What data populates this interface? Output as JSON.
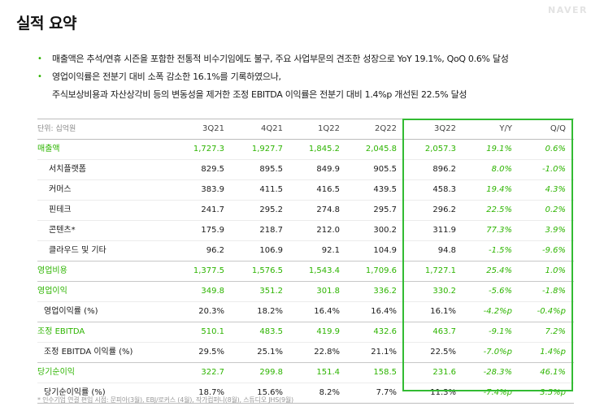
{
  "title": "실적 요약",
  "brand": "NAVER",
  "bullets": [
    "매출액은 추석/연휴 시즌을 포함한 전통적 비수기임에도 불구, 주요 사업부문의 견조한 성장으로 YoY 19.1%, QoQ 0.6% 달성",
    "영업이익률은 전분기 대비 소폭 감소한 16.1%를 기록하였으나,",
    "주식보상비용과 자산상각비 등의 변동성을 제거한 조정 EBITDA 이익률은 전분기 대비 1.4%p 개선된 22.5% 달성"
  ],
  "table": {
    "unit_label": "단위: 십억원",
    "columns": [
      "3Q21",
      "4Q21",
      "1Q22",
      "2Q22",
      "3Q22",
      "Y/Y",
      "Q/Q"
    ],
    "rows": [
      {
        "label": "매출액",
        "values": [
          "1,727.3",
          "1,927.7",
          "1,845.2",
          "2,045.8",
          "2,057.3",
          "19.1%",
          "0.6%"
        ]
      },
      {
        "label": "서치플랫폼",
        "values": [
          "829.5",
          "895.5",
          "849.9",
          "905.5",
          "896.2",
          "8.0%",
          "-1.0%"
        ]
      },
      {
        "label": "커머스",
        "values": [
          "383.9",
          "411.5",
          "416.5",
          "439.5",
          "458.3",
          "19.4%",
          "4.3%"
        ]
      },
      {
        "label": "핀테크",
        "values": [
          "241.7",
          "295.2",
          "274.8",
          "295.7",
          "296.2",
          "22.5%",
          "0.2%"
        ]
      },
      {
        "label": "콘텐츠*",
        "values": [
          "175.9",
          "218.7",
          "212.0",
          "300.2",
          "311.9",
          "77.3%",
          "3.9%"
        ]
      },
      {
        "label": "클라우드 및 기타",
        "values": [
          "96.2",
          "106.9",
          "92.1",
          "104.9",
          "94.8",
          "-1.5%",
          "-9.6%"
        ]
      },
      {
        "label": "영업비용",
        "values": [
          "1,377.5",
          "1,576.5",
          "1,543.4",
          "1,709.6",
          "1,727.1",
          "25.4%",
          "1.0%"
        ]
      },
      {
        "label": "영업이익",
        "values": [
          "349.8",
          "351.2",
          "301.8",
          "336.2",
          "330.2",
          "-5.6%",
          "-1.8%"
        ]
      },
      {
        "label": "영업이익률 (%)",
        "values": [
          "20.3%",
          "18.2%",
          "16.4%",
          "16.4%",
          "16.1%",
          "-4.2%p",
          "-0.4%p"
        ]
      },
      {
        "label": "조정 EBITDA",
        "values": [
          "510.1",
          "483.5",
          "419.9",
          "432.6",
          "463.7",
          "-9.1%",
          "7.2%"
        ]
      },
      {
        "label": "조정 EBITDA 이익률 (%)",
        "values": [
          "29.5%",
          "25.1%",
          "22.8%",
          "21.1%",
          "22.5%",
          "-7.0%p",
          "1.4%p"
        ]
      },
      {
        "label": "당기순이익",
        "values": [
          "322.7",
          "299.8",
          "151.4",
          "158.5",
          "231.6",
          "-28.3%",
          "46.1%"
        ]
      },
      {
        "label": "당기순이익률 (%)",
        "values": [
          "18.7%",
          "15.6%",
          "8.2%",
          "7.7%",
          "11.3%",
          "-7.4%p",
          "3.5%p"
        ]
      }
    ]
  },
  "footnote": "* 인수기업 연결 편입 시점: 문피아(3월), EBJ/로커스 (4월), 작가컴퍼니(8월), 스튜디오 JHS(9월)",
  "colors": {
    "accent": "#2db400",
    "highlight_border": "#33bb33"
  }
}
